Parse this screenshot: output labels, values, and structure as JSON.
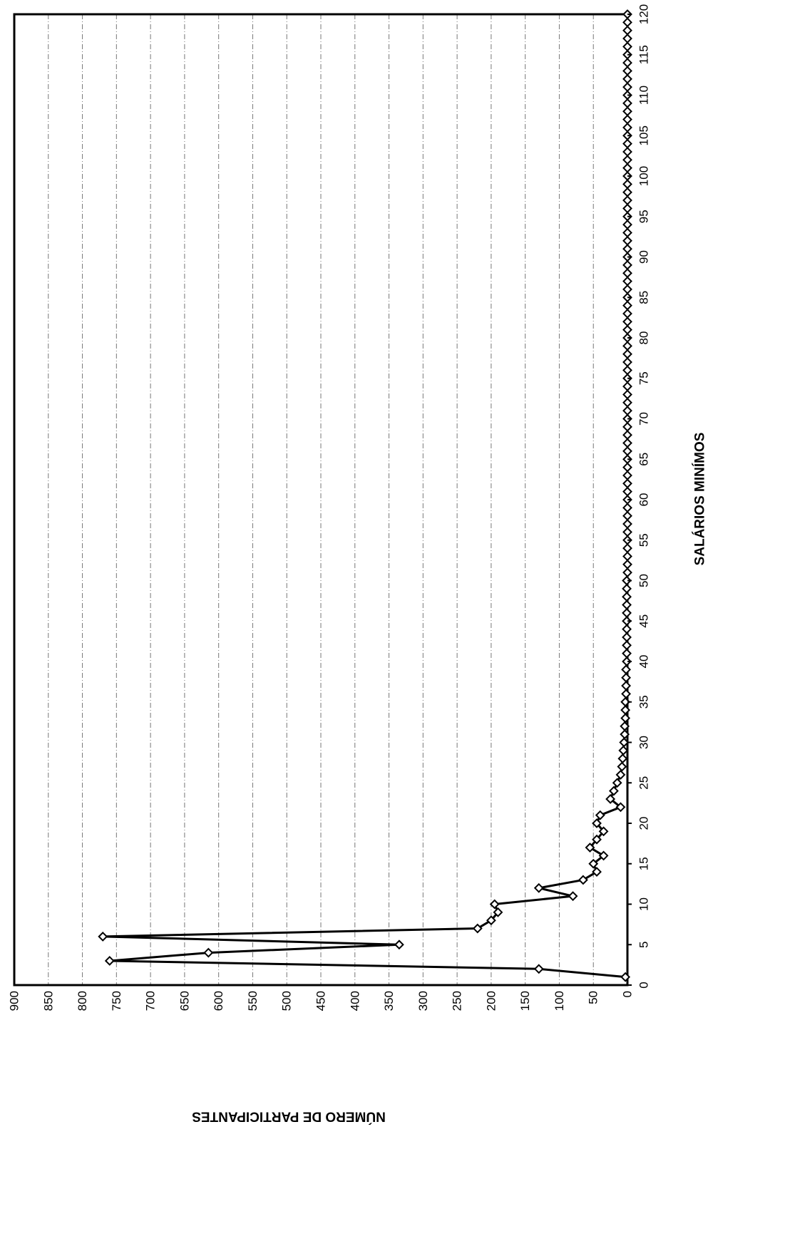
{
  "chart_data": {
    "type": "line",
    "title": "",
    "xlabel": "SALÁRIOS MINÍMOS",
    "ylabel": "NÚMERO DE PARTICIPANTES",
    "xlim": [
      0,
      120
    ],
    "ylim": [
      0,
      900
    ],
    "x_ticks": [
      0,
      5,
      10,
      15,
      20,
      25,
      30,
      35,
      40,
      45,
      50,
      55,
      60,
      65,
      70,
      75,
      80,
      85,
      90,
      95,
      100,
      105,
      110,
      115,
      120
    ],
    "y_ticks": [
      0,
      50,
      100,
      150,
      200,
      250,
      300,
      350,
      400,
      450,
      500,
      550,
      600,
      650,
      700,
      750,
      800,
      850,
      900
    ],
    "grid": true,
    "legend": "none",
    "marker": "diamond",
    "line_color": "#000000",
    "series": [
      {
        "x": [
          1,
          2,
          3,
          4,
          5,
          6,
          7,
          8,
          9,
          10,
          11,
          12,
          13,
          14,
          15,
          16,
          17,
          18,
          19,
          20,
          21,
          22,
          23,
          24,
          25,
          26,
          27,
          28,
          29,
          30,
          31,
          32,
          33,
          34,
          35,
          36,
          37,
          38,
          39,
          40,
          41,
          42,
          43,
          44,
          45,
          46,
          47,
          48,
          49,
          50,
          51,
          52,
          53,
          54,
          55,
          56,
          57,
          58,
          59,
          60,
          61,
          62,
          63,
          64,
          65,
          66,
          67,
          68,
          69,
          70,
          71,
          72,
          73,
          74,
          75,
          76,
          77,
          78,
          79,
          80,
          81,
          82,
          83,
          84,
          85,
          86,
          87,
          88,
          89,
          90,
          91,
          92,
          93,
          94,
          95,
          96,
          97,
          98,
          99,
          100,
          101,
          102,
          103,
          104,
          105,
          106,
          107,
          108,
          109,
          110,
          111,
          112,
          113,
          114,
          115,
          116,
          117,
          118,
          119,
          120
        ],
        "values": [
          3,
          130,
          760,
          615,
          335,
          770,
          220,
          200,
          190,
          195,
          80,
          130,
          65,
          45,
          50,
          35,
          55,
          45,
          35,
          45,
          40,
          10,
          25,
          20,
          15,
          10,
          8,
          7,
          6,
          5,
          4,
          4,
          3,
          3,
          3,
          2,
          2,
          2,
          2,
          1,
          1,
          1,
          1,
          1,
          1,
          1,
          1,
          1,
          1,
          1,
          0,
          0,
          0,
          0,
          0,
          0,
          0,
          0,
          0,
          0,
          0,
          0,
          0,
          0,
          0,
          0,
          0,
          0,
          0,
          0,
          0,
          0,
          0,
          0,
          0,
          0,
          0,
          0,
          0,
          0,
          0,
          0,
          0,
          0,
          0,
          0,
          0,
          0,
          0,
          0,
          0,
          0,
          0,
          0,
          0,
          0,
          0,
          0,
          0,
          0,
          0,
          0,
          0,
          0,
          0,
          0,
          0,
          0,
          0,
          0,
          0,
          0,
          0,
          0,
          0,
          0,
          0,
          0,
          0,
          0
        ]
      }
    ]
  }
}
